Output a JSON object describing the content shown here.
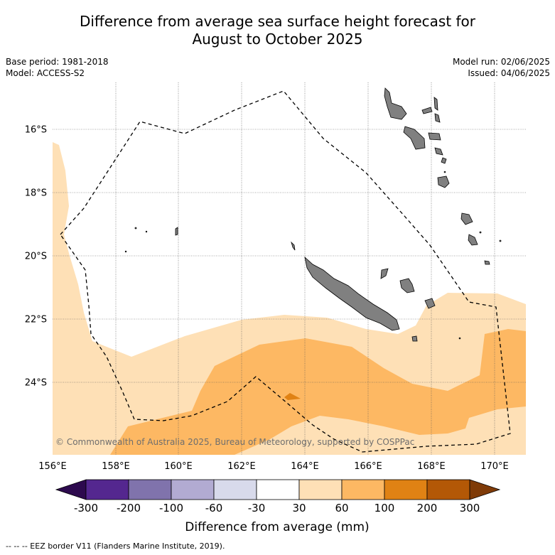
{
  "title": {
    "line1": "Difference from average sea surface height forecast for",
    "line2": "August to October 2025"
  },
  "meta": {
    "base_period": "Base period: 1981-2018",
    "model": "Model: ACCESS-S2",
    "model_run": "Model run: 02/06/2025",
    "issued": "Issued: 04/06/2025"
  },
  "map": {
    "copyright": "© Commonwealth of Australia 2025, Bureau of Meteorology, supported by COSPPac",
    "lon_ticks": [
      "156°E",
      "158°E",
      "160°E",
      "162°E",
      "164°E",
      "166°E",
      "168°E",
      "170°E"
    ],
    "lat_ticks": [
      "16°S",
      "18°S",
      "20°S",
      "22°S",
      "24°S"
    ],
    "land_color": "#808080",
    "eez_color": "#000000"
  },
  "colorbar": {
    "title": "Difference from average (mm)",
    "tick_labels": [
      "-300",
      "-200",
      "-100",
      "-60",
      "-30",
      "30",
      "60",
      "100",
      "200",
      "300"
    ],
    "colors": {
      "below_min": "#2d0a4e",
      "bins": [
        "#54278f",
        "#8073ac",
        "#b2abd2",
        "#d8daeb",
        "#ffffff",
        "#fee0b6",
        "#fdb863",
        "#e08214",
        "#b35806"
      ],
      "above_max": "#7f3b08"
    }
  },
  "footer": {
    "legend": "--  --  -- EEZ border V11 (Flanders Marine Institute, 2019)."
  }
}
